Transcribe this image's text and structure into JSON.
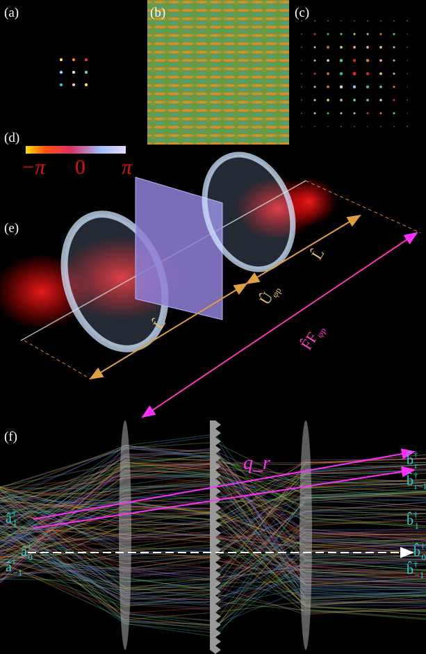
{
  "panels": {
    "a": "(a)",
    "b": "(b)",
    "c": "(c)",
    "d": "(d)",
    "e": "(e)",
    "f": "(f)"
  },
  "colorbar": {
    "min": "−π",
    "mid": "0",
    "max": "π"
  },
  "setup": {
    "lens_op_1": "L̂",
    "lens_op_2": "L̂",
    "phase_op": {
      "base": "Û",
      "sub": "φp"
    },
    "fourier_op": {
      "base": "F̂F",
      "sub": "φp"
    }
  },
  "modes": {
    "in_1": {
      "base": "â",
      "sup": "†",
      "sub": "1"
    },
    "in_0": {
      "base": "â",
      "sup": "†",
      "sub": "0"
    },
    "in_m1": {
      "base": "â",
      "sup": "†",
      "sub": "−1"
    },
    "out_r": {
      "base": "b̂",
      "sup": "†",
      "sub": "r"
    },
    "out_rm1": {
      "base": "b̂",
      "sup": "†",
      "sub": "r−1"
    },
    "out_1": {
      "base": "b̂",
      "sup": "†",
      "sub": "1"
    },
    "out_0": {
      "base": "b̂",
      "sup": "†",
      "sub": "0"
    },
    "out_m1": {
      "base": "b̂",
      "sup": "†",
      "sub": "−1"
    },
    "coupling": "q_r"
  }
}
